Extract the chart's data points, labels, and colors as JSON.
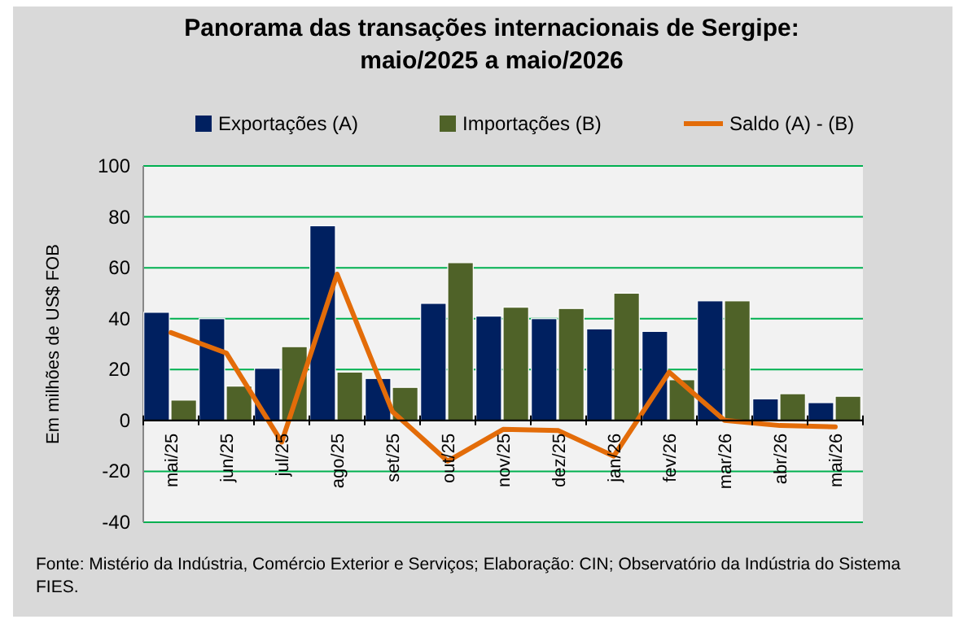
{
  "chart_data": {
    "type": "bar",
    "title": "Panorama das transações internacionais de Sergipe:\nmaio/2025 a maio/2026",
    "ylabel": "Em milhões de US$ FOB",
    "categories": [
      "mai/25",
      "jun/25",
      "jul/25",
      "ago/25",
      "set/25",
      "out/25",
      "nov/25",
      "dez/25",
      "jan/26",
      "fev/26",
      "mar/26",
      "abr/26",
      "mai/26"
    ],
    "series": [
      {
        "name": "Exportações (A)",
        "color": "#002060",
        "values": [
          42.5,
          40,
          20.5,
          76.5,
          16.5,
          46,
          41,
          40,
          36,
          35,
          47,
          8.5,
          7
        ]
      },
      {
        "name": "Importações (B)",
        "color": "#4f6228",
        "values": [
          8,
          13.5,
          29,
          19,
          13,
          62,
          44.5,
          44,
          50,
          16,
          47,
          10.5,
          9.5
        ]
      },
      {
        "name": "Saldo (A) - (B)",
        "type": "line",
        "color": "#e36c09",
        "values": [
          34.5,
          26.5,
          -8.5,
          57.5,
          3.5,
          -16,
          -3.5,
          -4,
          -14,
          19,
          0,
          -2,
          -2.5
        ]
      }
    ],
    "ylim": [
      -40,
      100
    ],
    "yticks": [
      -40,
      -20,
      0,
      20,
      40,
      60,
      80,
      100
    ],
    "grid": "y",
    "legend": "top",
    "marker": "none",
    "line_style": "solid",
    "annotations": [
      "Fonte: Mistério da Indústria, Comércio Exterior e Serviços; Elaboração: CIN; Observatório da Indústria do Sistema FIES."
    ]
  }
}
